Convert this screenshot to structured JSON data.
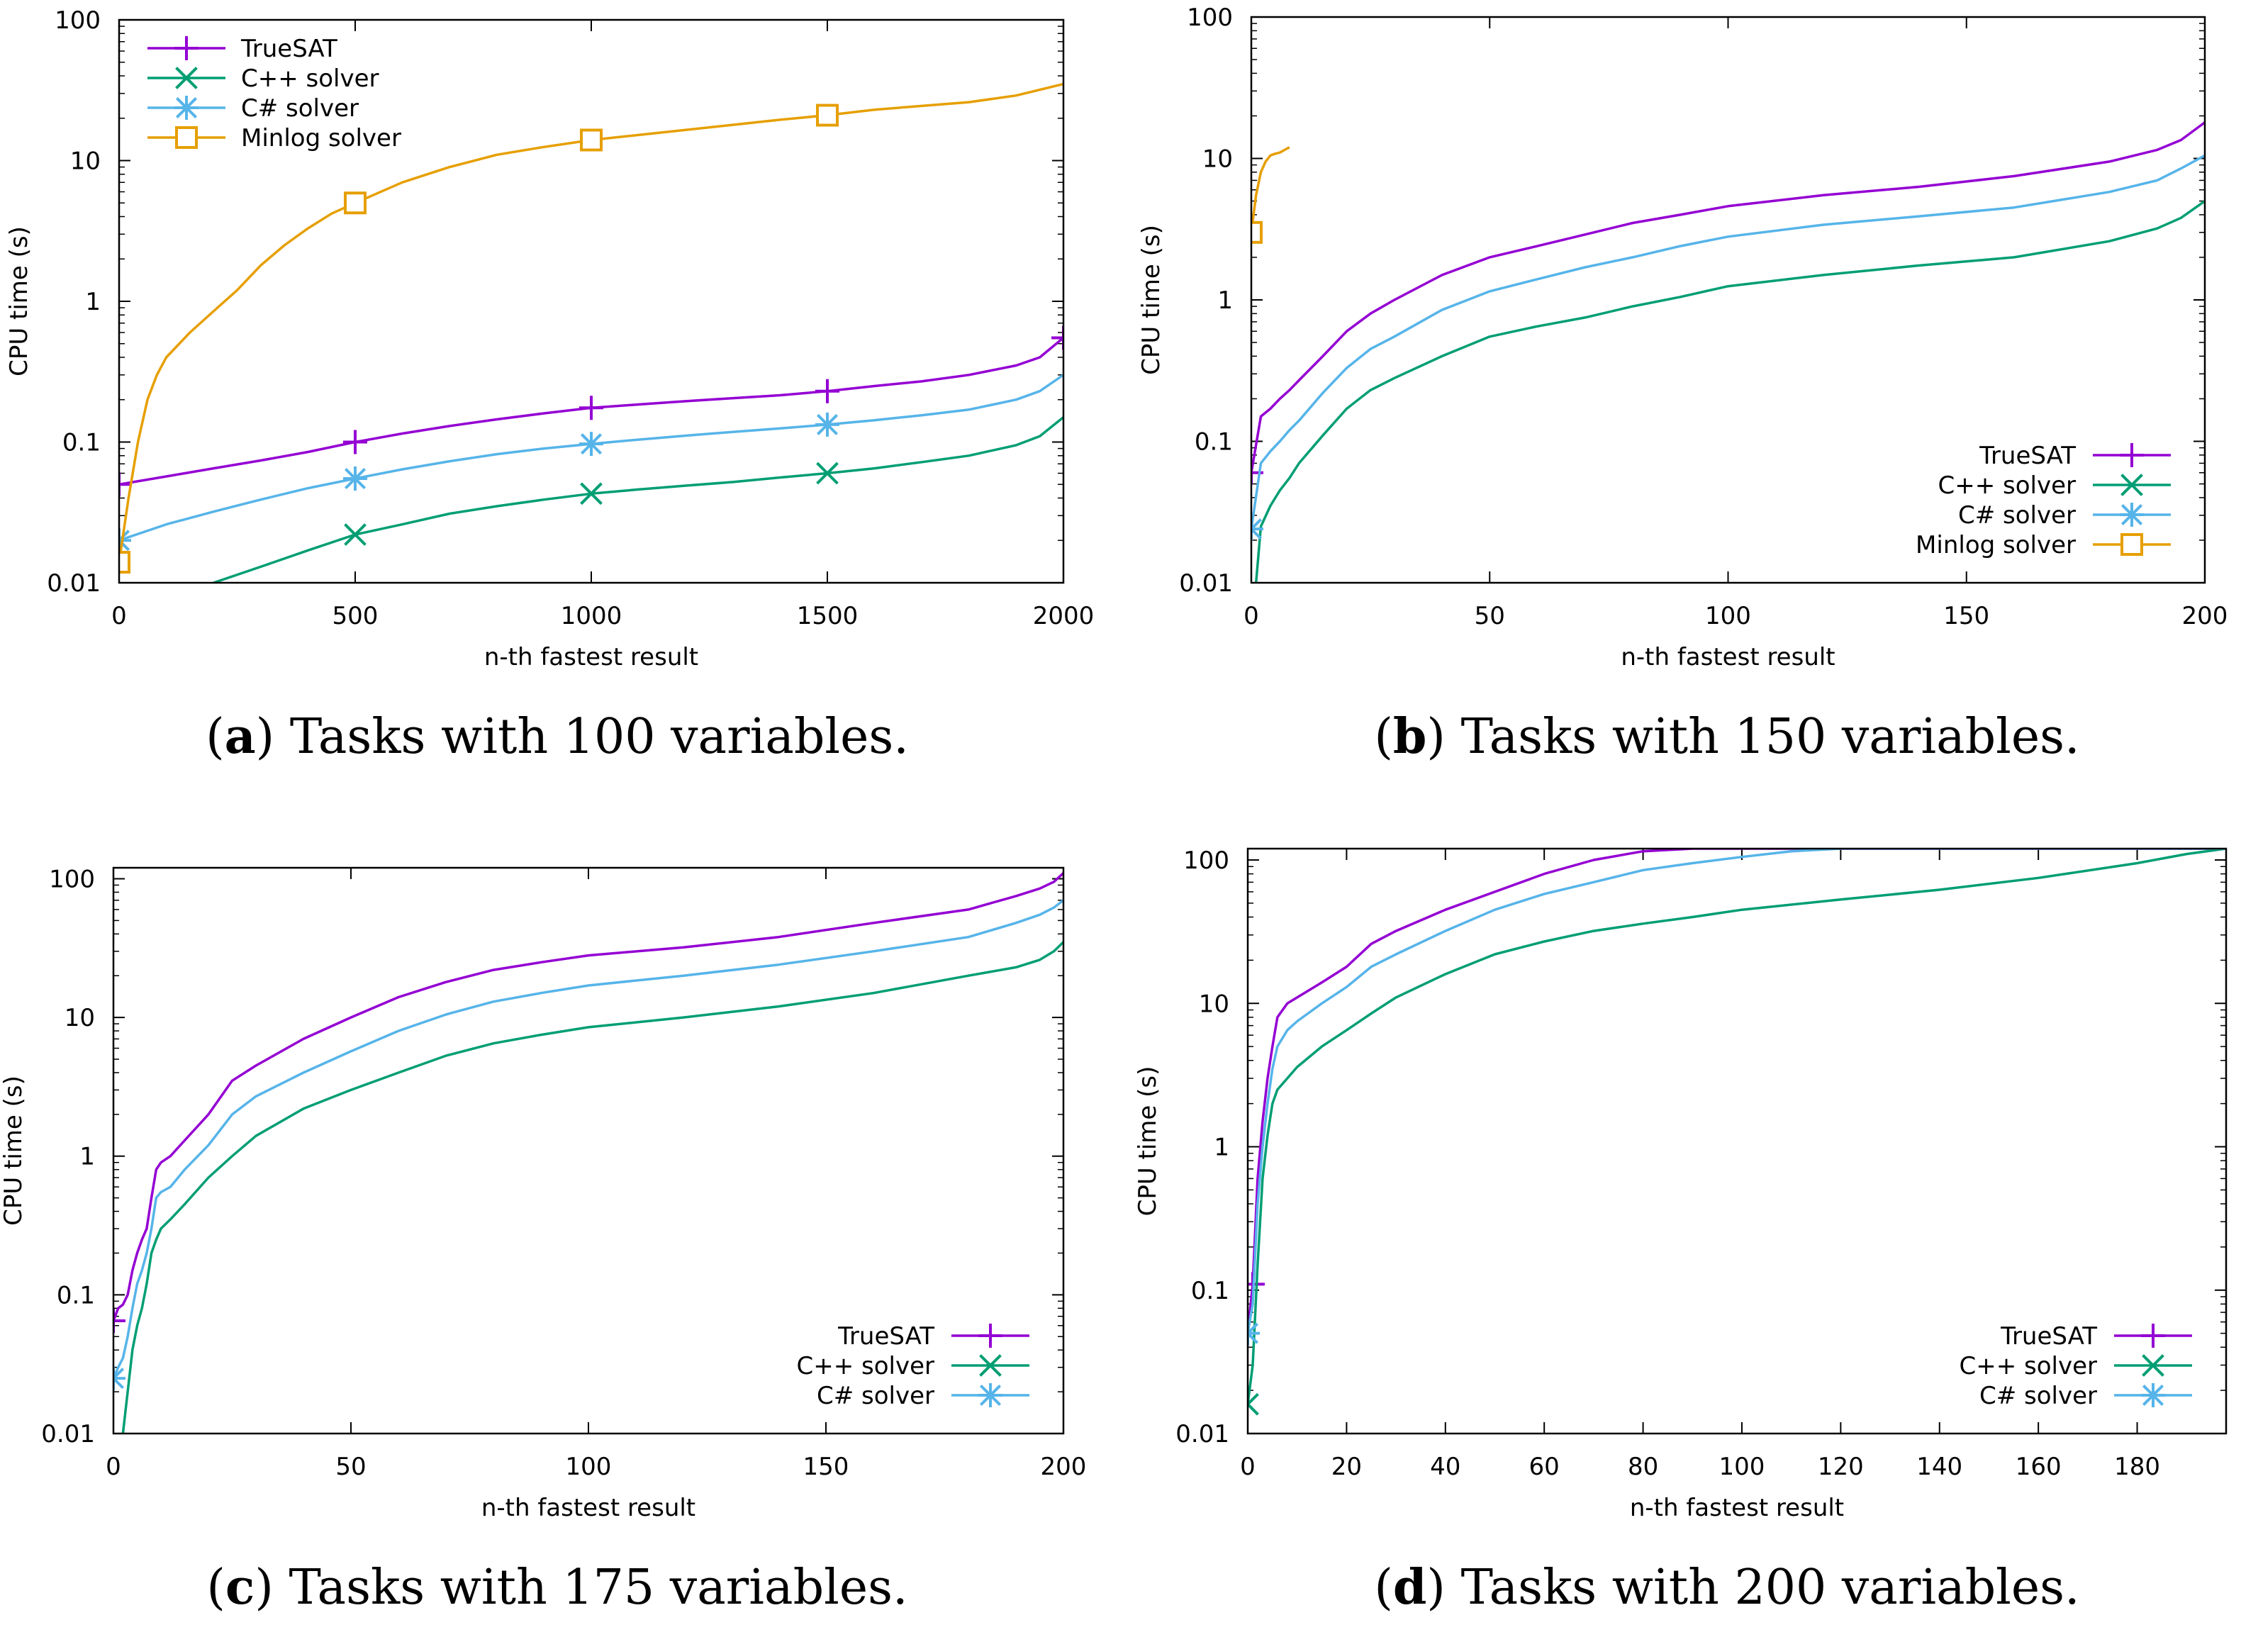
{
  "colors": {
    "TrueSAT": "#9400d3",
    "C++ solver": "#009e73",
    "C# solver": "#56b4e9",
    "Minlog solver": "#e69f00"
  },
  "chart_data": [
    {
      "type": "line",
      "panel_letter": "a",
      "caption": "Tasks with 100 variables.",
      "xlabel": "n-th fastest result",
      "ylabel": "CPU time (s)",
      "yscale": "log",
      "xlim": [
        0,
        2000
      ],
      "ylim": [
        0.01,
        100
      ],
      "xticks": [
        0,
        500,
        1000,
        1500,
        2000
      ],
      "xtick_labels": [
        "0",
        "500",
        "1000",
        "1500",
        "2000"
      ],
      "yticks": [
        0.01,
        0.1,
        1,
        10,
        100
      ],
      "ytick_labels": [
        "0.01",
        "0.1",
        "1",
        "10",
        "100"
      ],
      "legend_position": "top-left",
      "legend_marker_side": "left",
      "series": [
        {
          "name": "TrueSAT",
          "marker": "plus",
          "marker_x": [
            0,
            500,
            1000,
            1500,
            2000
          ],
          "x": [
            0,
            100,
            200,
            300,
            400,
            500,
            600,
            700,
            800,
            900,
            1000,
            1100,
            1200,
            1300,
            1400,
            1500,
            1600,
            1700,
            1800,
            1900,
            1950,
            2000
          ],
          "y": [
            0.05,
            0.057,
            0.065,
            0.074,
            0.085,
            0.1,
            0.115,
            0.13,
            0.145,
            0.16,
            0.175,
            0.185,
            0.195,
            0.205,
            0.215,
            0.23,
            0.25,
            0.27,
            0.3,
            0.35,
            0.4,
            0.55
          ]
        },
        {
          "name": "C++ solver",
          "marker": "cross",
          "marker_x": [
            500,
            1000,
            1500
          ],
          "x": [
            200,
            300,
            400,
            500,
            600,
            700,
            800,
            900,
            1000,
            1100,
            1200,
            1300,
            1400,
            1500,
            1600,
            1700,
            1800,
            1900,
            1950,
            2000
          ],
          "y": [
            0.01,
            0.013,
            0.017,
            0.022,
            0.026,
            0.031,
            0.035,
            0.039,
            0.043,
            0.046,
            0.049,
            0.052,
            0.056,
            0.06,
            0.065,
            0.072,
            0.08,
            0.095,
            0.11,
            0.15
          ]
        },
        {
          "name": "C# solver",
          "marker": "star",
          "marker_x": [
            0,
            500,
            1000,
            1500
          ],
          "x": [
            0,
            100,
            200,
            300,
            400,
            500,
            600,
            700,
            800,
            900,
            1000,
            1100,
            1200,
            1300,
            1400,
            1500,
            1600,
            1700,
            1800,
            1900,
            1950,
            2000
          ],
          "y": [
            0.02,
            0.026,
            0.032,
            0.039,
            0.047,
            0.055,
            0.064,
            0.073,
            0.082,
            0.09,
            0.097,
            0.104,
            0.111,
            0.118,
            0.125,
            0.133,
            0.143,
            0.155,
            0.17,
            0.2,
            0.23,
            0.3
          ]
        },
        {
          "name": "Minlog solver",
          "marker": "square",
          "marker_x": [
            0,
            500,
            1000,
            1500
          ],
          "x": [
            0,
            20,
            40,
            60,
            80,
            100,
            150,
            200,
            250,
            300,
            350,
            400,
            450,
            500,
            600,
            700,
            800,
            900,
            1000,
            1200,
            1400,
            1500,
            1600,
            1800,
            1900,
            2000
          ],
          "y": [
            0.014,
            0.04,
            0.1,
            0.2,
            0.3,
            0.4,
            0.6,
            0.85,
            1.2,
            1.8,
            2.5,
            3.3,
            4.2,
            5.0,
            7.0,
            9.0,
            11.0,
            12.5,
            14.0,
            16.5,
            19.5,
            21.0,
            23.0,
            26.0,
            29.0,
            35.0
          ]
        }
      ]
    },
    {
      "type": "line",
      "panel_letter": "b",
      "caption": "Tasks with 150 variables.",
      "xlabel": "n-th fastest result",
      "ylabel": "CPU time (s)",
      "yscale": "log",
      "xlim": [
        0,
        200
      ],
      "ylim": [
        0.01,
        100
      ],
      "xticks": [
        0,
        50,
        100,
        150,
        200
      ],
      "xtick_labels": [
        "0",
        "50",
        "100",
        "150",
        "200"
      ],
      "yticks": [
        0.01,
        0.1,
        1,
        10,
        100
      ],
      "ytick_labels": [
        "0.01",
        "0.1",
        "1",
        "10",
        "100"
      ],
      "legend_position": "bottom-right",
      "legend_marker_side": "right",
      "series": [
        {
          "name": "TrueSAT",
          "marker": "plus",
          "marker_x": [
            0
          ],
          "x": [
            0,
            2,
            4,
            6,
            8,
            10,
            15,
            20,
            25,
            30,
            40,
            50,
            60,
            70,
            80,
            90,
            100,
            120,
            140,
            160,
            180,
            190,
            195,
            200
          ],
          "y": [
            0.06,
            0.15,
            0.17,
            0.2,
            0.23,
            0.27,
            0.4,
            0.6,
            0.8,
            1.0,
            1.5,
            2.0,
            2.4,
            2.9,
            3.5,
            4.0,
            4.6,
            5.5,
            6.3,
            7.5,
            9.5,
            11.5,
            13.5,
            18.0
          ]
        },
        {
          "name": "C++ solver",
          "marker": "cross",
          "marker_x": [],
          "x": [
            1,
            2,
            4,
            6,
            8,
            10,
            15,
            20,
            25,
            30,
            40,
            50,
            60,
            70,
            80,
            90,
            100,
            120,
            140,
            160,
            180,
            190,
            195,
            200
          ],
          "y": [
            0.01,
            0.025,
            0.035,
            0.045,
            0.055,
            0.07,
            0.11,
            0.17,
            0.23,
            0.28,
            0.4,
            0.55,
            0.65,
            0.75,
            0.9,
            1.05,
            1.25,
            1.5,
            1.75,
            2.0,
            2.6,
            3.2,
            3.8,
            5.0
          ]
        },
        {
          "name": "C# solver",
          "marker": "star",
          "marker_x": [
            0
          ],
          "x": [
            0,
            2,
            4,
            6,
            8,
            10,
            15,
            20,
            25,
            30,
            40,
            50,
            60,
            70,
            80,
            90,
            100,
            120,
            140,
            160,
            180,
            190,
            195,
            200
          ],
          "y": [
            0.024,
            0.07,
            0.085,
            0.1,
            0.12,
            0.14,
            0.22,
            0.33,
            0.45,
            0.55,
            0.85,
            1.15,
            1.4,
            1.7,
            2.0,
            2.4,
            2.8,
            3.4,
            3.9,
            4.5,
            5.8,
            7.0,
            8.5,
            10.5
          ]
        },
        {
          "name": "Minlog solver",
          "marker": "square",
          "marker_x": [
            0
          ],
          "x": [
            0,
            1,
            2,
            3,
            4,
            5,
            6,
            7,
            8
          ],
          "y": [
            3.0,
            5.5,
            8.0,
            9.5,
            10.5,
            10.8,
            11.0,
            11.5,
            12.0
          ]
        }
      ]
    },
    {
      "type": "line",
      "panel_letter": "c",
      "caption": "Tasks with 175 variables.",
      "xlabel": "n-th fastest result",
      "ylabel": "CPU time (s)",
      "yscale": "log",
      "xlim": [
        0,
        200
      ],
      "ylim": [
        0.01,
        120
      ],
      "xticks": [
        0,
        50,
        100,
        150,
        200
      ],
      "xtick_labels": [
        "0",
        "50",
        "100",
        "150",
        "200"
      ],
      "yticks": [
        0.01,
        0.1,
        1,
        10,
        100
      ],
      "ytick_labels": [
        "0.01",
        "0.1",
        "1",
        "10",
        "100"
      ],
      "legend_position": "bottom-right",
      "legend_marker_side": "right",
      "series": [
        {
          "name": "TrueSAT",
          "marker": "plus",
          "marker_x": [
            0
          ],
          "x": [
            0,
            1,
            2,
            3,
            4,
            5,
            6,
            7,
            8,
            9,
            10,
            12,
            15,
            20,
            25,
            30,
            40,
            50,
            60,
            70,
            80,
            90,
            100,
            120,
            140,
            160,
            180,
            190,
            195,
            198,
            200
          ],
          "y": [
            0.065,
            0.08,
            0.085,
            0.1,
            0.15,
            0.2,
            0.25,
            0.3,
            0.5,
            0.8,
            0.9,
            1.0,
            1.3,
            2.0,
            3.5,
            4.5,
            7.0,
            10.0,
            14.0,
            18.0,
            22.0,
            25.0,
            28.0,
            32.0,
            38.0,
            48.0,
            60.0,
            75.0,
            85.0,
            95.0,
            110.0
          ]
        },
        {
          "name": "C++ solver",
          "marker": "cross",
          "marker_x": [],
          "x": [
            2,
            3,
            4,
            5,
            6,
            7,
            8,
            9,
            10,
            12,
            15,
            20,
            25,
            30,
            40,
            50,
            60,
            70,
            80,
            90,
            100,
            120,
            140,
            160,
            180,
            190,
            195,
            198,
            200
          ],
          "y": [
            0.01,
            0.02,
            0.04,
            0.06,
            0.08,
            0.12,
            0.2,
            0.25,
            0.3,
            0.35,
            0.45,
            0.7,
            1.0,
            1.4,
            2.2,
            3.0,
            4.0,
            5.3,
            6.5,
            7.5,
            8.5,
            10.0,
            12.0,
            15.0,
            20.0,
            23.0,
            26.0,
            30.0,
            35.0
          ]
        },
        {
          "name": "C# solver",
          "marker": "star",
          "marker_x": [
            0
          ],
          "x": [
            0,
            1,
            2,
            3,
            4,
            5,
            6,
            7,
            8,
            9,
            10,
            12,
            15,
            20,
            25,
            30,
            40,
            50,
            60,
            70,
            80,
            90,
            100,
            120,
            140,
            160,
            180,
            190,
            195,
            198,
            200
          ],
          "y": [
            0.025,
            0.03,
            0.035,
            0.05,
            0.08,
            0.12,
            0.15,
            0.2,
            0.3,
            0.5,
            0.55,
            0.6,
            0.8,
            1.2,
            2.0,
            2.7,
            4.0,
            5.7,
            8.0,
            10.5,
            13.0,
            15.0,
            17.0,
            20.0,
            24.0,
            30.0,
            38.0,
            48.0,
            55.0,
            62.0,
            70.0
          ]
        }
      ]
    },
    {
      "type": "line",
      "panel_letter": "d",
      "caption": "Tasks with 200 variables.",
      "xlabel": "n-th fastest result",
      "ylabel": "CPU time (s)",
      "yscale": "log",
      "xlim": [
        0,
        198
      ],
      "ylim": [
        0.01,
        120
      ],
      "xticks": [
        0,
        20,
        40,
        60,
        80,
        100,
        120,
        140,
        160,
        180
      ],
      "xtick_labels": [
        "0",
        "20",
        "40",
        "60",
        "80",
        "100",
        "120",
        "140",
        "160",
        "180"
      ],
      "yticks": [
        0.01,
        0.1,
        1,
        10,
        100
      ],
      "ytick_labels": [
        "0.01",
        "0.1",
        "1",
        "10",
        "100"
      ],
      "legend_position": "bottom-right",
      "legend_marker_side": "right",
      "series": [
        {
          "name": "TrueSAT",
          "marker": "plus",
          "marker_x": [
            1
          ],
          "x": [
            0,
            1,
            2,
            3,
            4,
            5,
            6,
            8,
            10,
            15,
            20,
            25,
            30,
            40,
            50,
            60,
            70,
            80,
            90,
            100,
            120,
            140,
            160,
            180,
            198
          ],
          "y": [
            0.05,
            0.11,
            0.6,
            1.5,
            3.0,
            5.0,
            8.0,
            10.0,
            11.0,
            14.0,
            18.0,
            26.0,
            32.0,
            45.0,
            60.0,
            80.0,
            100.0,
            115.0,
            120.0,
            120.0,
            120.0,
            120.0,
            120.0,
            120.0,
            120.0
          ]
        },
        {
          "name": "C++ solver",
          "marker": "cross",
          "marker_x": [
            0
          ],
          "x": [
            0,
            1,
            2,
            3,
            4,
            5,
            6,
            8,
            10,
            15,
            20,
            25,
            30,
            40,
            50,
            60,
            70,
            80,
            90,
            100,
            120,
            140,
            160,
            180,
            190,
            198
          ],
          "y": [
            0.016,
            0.03,
            0.15,
            0.6,
            1.2,
            2.0,
            2.5,
            3.0,
            3.6,
            5.0,
            6.5,
            8.5,
            11.0,
            16.0,
            22.0,
            27.0,
            32.0,
            36.0,
            40.0,
            45.0,
            53.0,
            62.0,
            75.0,
            95.0,
            110.0,
            120.0
          ]
        },
        {
          "name": "C# solver",
          "marker": "star",
          "marker_x": [
            0
          ],
          "x": [
            0,
            1,
            2,
            3,
            4,
            5,
            6,
            8,
            10,
            15,
            20,
            25,
            30,
            40,
            50,
            60,
            70,
            80,
            90,
            100,
            110,
            120,
            140,
            160,
            180,
            198
          ],
          "y": [
            0.05,
            0.08,
            0.4,
            1.0,
            2.0,
            3.5,
            5.0,
            6.5,
            7.5,
            10.0,
            13.0,
            18.0,
            22.0,
            32.0,
            45.0,
            58.0,
            70.0,
            85.0,
            95.0,
            105.0,
            115.0,
            120.0,
            120.0,
            120.0,
            120.0,
            120.0
          ]
        }
      ]
    }
  ]
}
